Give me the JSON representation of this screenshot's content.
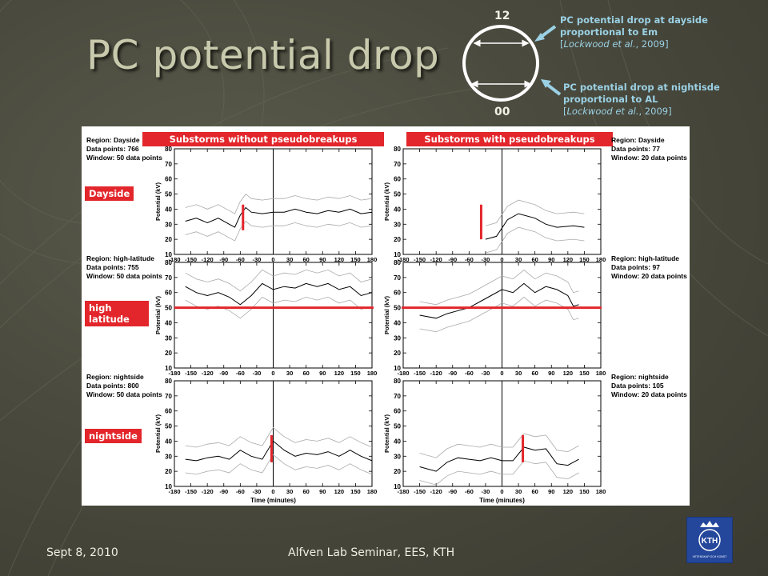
{
  "slide": {
    "title": "PC potential drop",
    "diagram": {
      "top_label": "12",
      "bottom_label": "00"
    },
    "dayside_note": {
      "line1": "PC potential drop at dayside",
      "line2": "proportional to Em",
      "cite_prefix": "[",
      "cite_authors": "Lockwood et al.",
      "cite_suffix": ", 2009]"
    },
    "nightside_note": {
      "line1": "PC potential drop at nightisde",
      "line2": "proportional to AL",
      "cite_prefix": "[",
      "cite_authors": "Lockwood et al.",
      "cite_suffix": ", 2009]"
    },
    "banner_left": "Substorms without  pseudobreakups",
    "banner_right": "Substorms with pseudobreakups",
    "row_tags": [
      "Dayside",
      "high latitude",
      "nightside"
    ],
    "footer_left": "Sept 8, 2010",
    "footer_center": "Alfven Lab Seminar, EES, KTH",
    "logo_text": "KTH",
    "logo_subtext": "VETENSKAP OCH KONST"
  },
  "panel_info": {
    "left": [
      [
        "Region: Dayside",
        "Data points: 766",
        "Window: 50 data points"
      ],
      [
        "Region: high-latitude",
        "Data points: 755",
        "Window: 50 data points"
      ],
      [
        "Region: nightside",
        "Data points: 800",
        "Window: 50 data points"
      ]
    ],
    "right": [
      [
        "Region: Dayside",
        "Data points: 77",
        "Window: 20 data points"
      ],
      [
        "Region: high-latitude",
        "Data points: 97",
        "Window: 20 data points"
      ],
      [
        "Region: nightside",
        "Data points: 105",
        "Window: 20 data points"
      ]
    ]
  },
  "chart_data": {
    "type": "line",
    "xlabel": "Time (minutes)",
    "ylabel": "Potential (kV)",
    "xlim": [
      -180,
      180
    ],
    "ylim": [
      10,
      80
    ],
    "xticks": [
      -180,
      -150,
      -120,
      -90,
      -60,
      -30,
      0,
      30,
      60,
      90,
      120,
      150,
      180
    ],
    "yticks": [
      10,
      20,
      30,
      40,
      50,
      60,
      70,
      80
    ],
    "panels": [
      {
        "x": [
          -160,
          -140,
          -120,
          -100,
          -80,
          -70,
          -60,
          -50,
          -40,
          -20,
          0,
          20,
          40,
          60,
          80,
          100,
          120,
          140,
          160,
          180
        ],
        "y": [
          32,
          34,
          31,
          34,
          30,
          28,
          36,
          41,
          38,
          37,
          38,
          38,
          40,
          38,
          37,
          39,
          38,
          40,
          37,
          38
        ],
        "marker": {
          "x": -55,
          "y": [
            26,
            43
          ]
        }
      },
      {
        "x": [
          -30,
          -10,
          10,
          30,
          60,
          80,
          100,
          130,
          150
        ],
        "y": [
          20,
          22,
          33,
          37,
          34,
          30,
          28,
          29,
          28
        ],
        "marker": {
          "x": -38,
          "y": [
            20,
            43
          ]
        }
      },
      {
        "x": [
          -160,
          -140,
          -120,
          -100,
          -80,
          -60,
          -40,
          -20,
          0,
          20,
          40,
          60,
          80,
          100,
          120,
          140,
          160,
          180
        ],
        "y": [
          64,
          60,
          58,
          60,
          57,
          52,
          58,
          66,
          62,
          64,
          63,
          66,
          64,
          66,
          62,
          64,
          58,
          60
        ],
        "hline": 50
      },
      {
        "x": [
          -150,
          -120,
          -100,
          -80,
          -60,
          -40,
          -20,
          0,
          20,
          40,
          60,
          80,
          100,
          120,
          130,
          140
        ],
        "y": [
          45,
          43,
          46,
          48,
          50,
          54,
          58,
          62,
          60,
          66,
          60,
          64,
          62,
          58,
          51,
          52
        ],
        "hline": 50
      },
      {
        "x": [
          -160,
          -140,
          -120,
          -100,
          -80,
          -60,
          -40,
          -20,
          0,
          20,
          40,
          60,
          80,
          100,
          120,
          140,
          160,
          180
        ],
        "y": [
          28,
          27,
          29,
          30,
          28,
          34,
          30,
          28,
          40,
          34,
          30,
          32,
          31,
          33,
          30,
          34,
          30,
          27
        ],
        "marker": {
          "x": -3,
          "y": [
            26,
            44
          ]
        }
      },
      {
        "x": [
          -150,
          -120,
          -100,
          -80,
          -60,
          -40,
          -20,
          0,
          20,
          40,
          60,
          80,
          100,
          120,
          140
        ],
        "y": [
          23,
          20,
          26,
          29,
          28,
          27,
          29,
          27,
          27,
          36,
          34,
          35,
          25,
          24,
          28
        ],
        "marker": {
          "x": 38,
          "y": [
            26,
            44
          ]
        }
      }
    ]
  }
}
